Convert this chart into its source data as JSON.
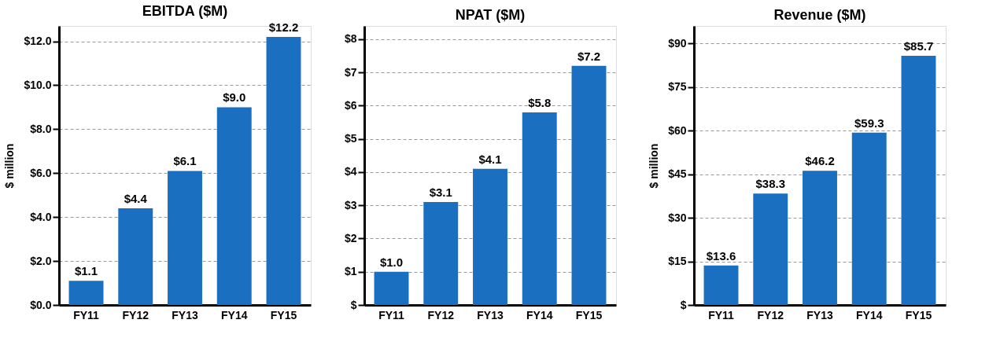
{
  "chart_data": [
    {
      "type": "bar",
      "title": "EBITDA ($M)",
      "ylabel": "$ million",
      "categories": [
        "FY11",
        "FY12",
        "FY13",
        "FY14",
        "FY15"
      ],
      "values": [
        1.1,
        4.4,
        6.1,
        9.0,
        12.2
      ],
      "value_labels": [
        "$1.1",
        "$4.4",
        "$6.1",
        "$9.0",
        "$12.2"
      ],
      "color": "#1a6fc0",
      "ylim": [
        0,
        12.7
      ],
      "yticks": [
        {
          "value": 0,
          "label": "$0.0"
        },
        {
          "value": 2,
          "label": "$2.0"
        },
        {
          "value": 4,
          "label": "$4.0"
        },
        {
          "value": 6,
          "label": "$6.0"
        },
        {
          "value": 8,
          "label": "$8.0"
        },
        {
          "value": 10,
          "label": "$10.0"
        },
        {
          "value": 12,
          "label": "$12.0"
        }
      ],
      "grid": "y"
    },
    {
      "type": "bar",
      "title": "NPAT ($M)",
      "categories": [
        "FY11",
        "FY12",
        "FY13",
        "FY14",
        "FY15"
      ],
      "values": [
        1.0,
        3.1,
        4.1,
        5.8,
        7.2
      ],
      "value_labels": [
        "$1.0",
        "$3.1",
        "$4.1",
        "$5.8",
        "$7.2"
      ],
      "color": "#1a6fc0",
      "ylim": [
        0,
        8.4
      ],
      "yticks": [
        {
          "value": 0,
          "label": "$"
        },
        {
          "value": 1,
          "label": "$1"
        },
        {
          "value": 2,
          "label": "$2"
        },
        {
          "value": 3,
          "label": "$3"
        },
        {
          "value": 4,
          "label": "$4"
        },
        {
          "value": 5,
          "label": "$5"
        },
        {
          "value": 6,
          "label": "$6"
        },
        {
          "value": 7,
          "label": "$7"
        },
        {
          "value": 8,
          "label": "$8"
        }
      ],
      "grid": "y"
    },
    {
      "type": "bar",
      "title": "Revenue ($M)",
      "ylabel": "$ million",
      "categories": [
        "FY11",
        "FY12",
        "FY13",
        "FY14",
        "FY15"
      ],
      "values": [
        13.6,
        38.3,
        46.2,
        59.3,
        85.7
      ],
      "value_labels": [
        "$13.6",
        "$38.3",
        "$46.2",
        "$59.3",
        "$85.7"
      ],
      "color": "#1a6fc0",
      "ylim": [
        0,
        96
      ],
      "yticks": [
        {
          "value": 0,
          "label": "$"
        },
        {
          "value": 15,
          "label": "$15"
        },
        {
          "value": 30,
          "label": "$30"
        },
        {
          "value": 45,
          "label": "$45"
        },
        {
          "value": 60,
          "label": "$60"
        },
        {
          "value": 75,
          "label": "$75"
        },
        {
          "value": 90,
          "label": "$90"
        }
      ],
      "grid": "y"
    }
  ]
}
